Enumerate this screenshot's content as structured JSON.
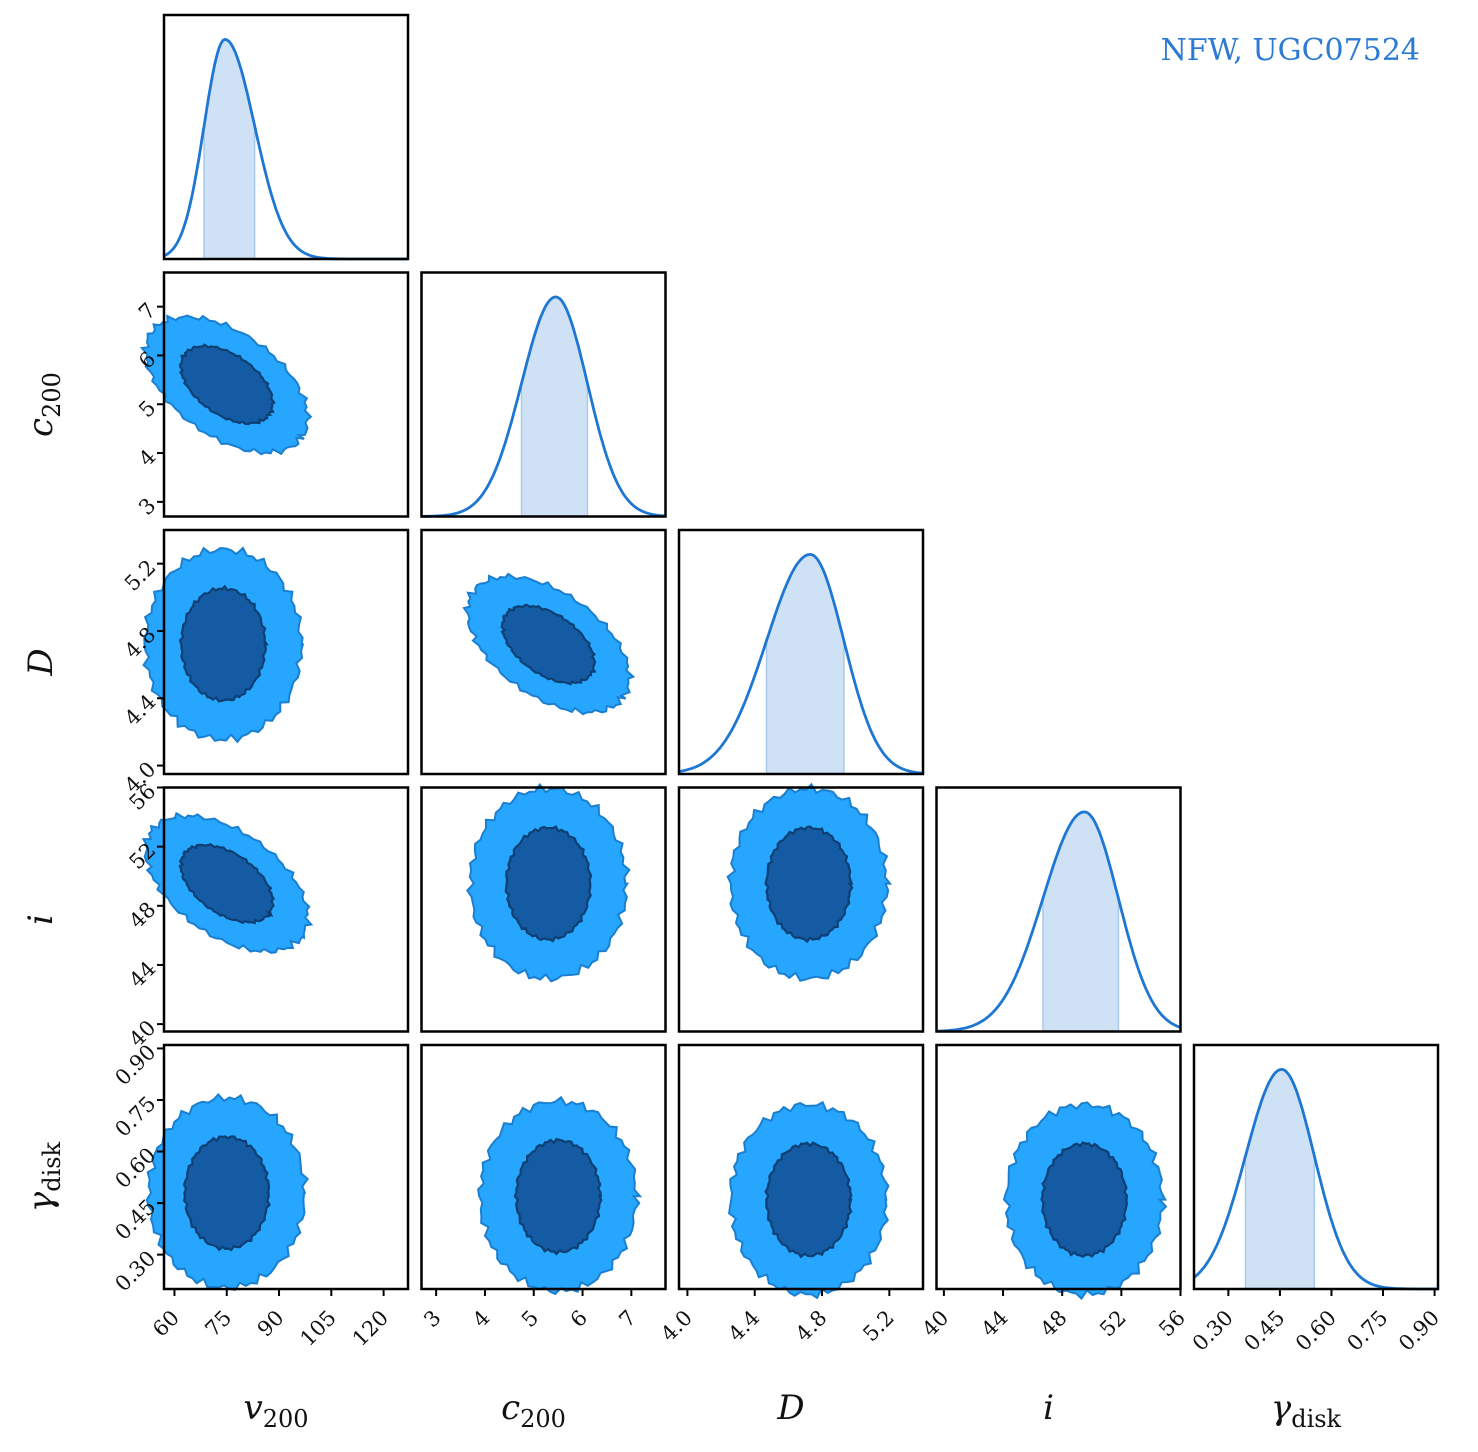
{
  "legend": "NFW, UGC07524",
  "colors": {
    "line": "#1f77d4",
    "fill_1d": "#cfe2f5",
    "contour_outer": "#26a6ff",
    "contour_inner": "#155ba3",
    "contour_inner_edge": "#0d3f73",
    "frame": "#000000"
  },
  "chart_data": {
    "type": "corner",
    "params": [
      {
        "key": "v200",
        "base": "v",
        "sub": "200",
        "range": [
          57,
          127
        ],
        "ticks": [
          60,
          75,
          90,
          105,
          120
        ],
        "tick_labels": [
          "60",
          "75",
          "90",
          "105",
          "120"
        ],
        "peak": 74.5,
        "ci": [
          68.5,
          83.0
        ]
      },
      {
        "key": "c200",
        "base": "c",
        "sub": "200",
        "range": [
          2.7,
          7.7
        ],
        "ticks": [
          3,
          4,
          5,
          6,
          7
        ],
        "tick_labels": [
          "3",
          "4",
          "5",
          "6",
          "7"
        ],
        "peak": 5.45,
        "ci": [
          4.75,
          6.1
        ]
      },
      {
        "key": "D",
        "base": "D",
        "sub": "",
        "range": [
          3.95,
          5.4
        ],
        "ticks": [
          4.0,
          4.4,
          4.8,
          5.2
        ],
        "tick_labels": [
          "4.0",
          "4.4",
          "4.8",
          "5.2"
        ],
        "peak": 4.73,
        "ci": [
          4.47,
          4.93
        ]
      },
      {
        "key": "i",
        "base": "i",
        "sub": "",
        "range": [
          39.5,
          56.0
        ],
        "ticks": [
          40,
          44,
          48,
          52,
          56
        ],
        "tick_labels": [
          "40",
          "44",
          "48",
          "52",
          "56"
        ],
        "peak": 49.5,
        "ci": [
          46.7,
          51.8
        ]
      },
      {
        "key": "gamma_disk",
        "base": "γ",
        "sub": "disk",
        "range": [
          0.2,
          0.91
        ],
        "ticks": [
          0.3,
          0.45,
          0.6,
          0.75,
          0.9
        ],
        "tick_labels": [
          "0.30",
          "0.45",
          "0.60",
          "0.75",
          "0.90"
        ],
        "peak": 0.455,
        "ci": [
          0.35,
          0.55
        ]
      }
    ],
    "contours_2d": [
      {
        "x": "v200",
        "y": "c200",
        "center": [
          75,
          5.4
        ],
        "orientation": "negative"
      },
      {
        "x": "v200",
        "y": "D",
        "center": [
          74,
          4.72
        ],
        "orientation": "none"
      },
      {
        "x": "c200",
        "y": "D",
        "center": [
          5.3,
          4.72
        ],
        "orientation": "negative"
      },
      {
        "x": "v200",
        "y": "i",
        "center": [
          75,
          49.5
        ],
        "orientation": "negative"
      },
      {
        "x": "c200",
        "y": "i",
        "center": [
          5.3,
          49.5
        ],
        "orientation": "none"
      },
      {
        "x": "D",
        "y": "i",
        "center": [
          4.72,
          49.5
        ],
        "orientation": "none"
      },
      {
        "x": "v200",
        "y": "gamma_disk",
        "center": [
          75,
          0.48
        ],
        "orientation": "none"
      },
      {
        "x": "c200",
        "y": "gamma_disk",
        "center": [
          5.5,
          0.47
        ],
        "orientation": "none"
      },
      {
        "x": "D",
        "y": "gamma_disk",
        "center": [
          4.72,
          0.46
        ],
        "orientation": "none"
      },
      {
        "x": "i",
        "y": "gamma_disk",
        "center": [
          49.5,
          0.46
        ],
        "orientation": "none"
      }
    ],
    "levels": [
      "68%",
      "95%"
    ]
  }
}
